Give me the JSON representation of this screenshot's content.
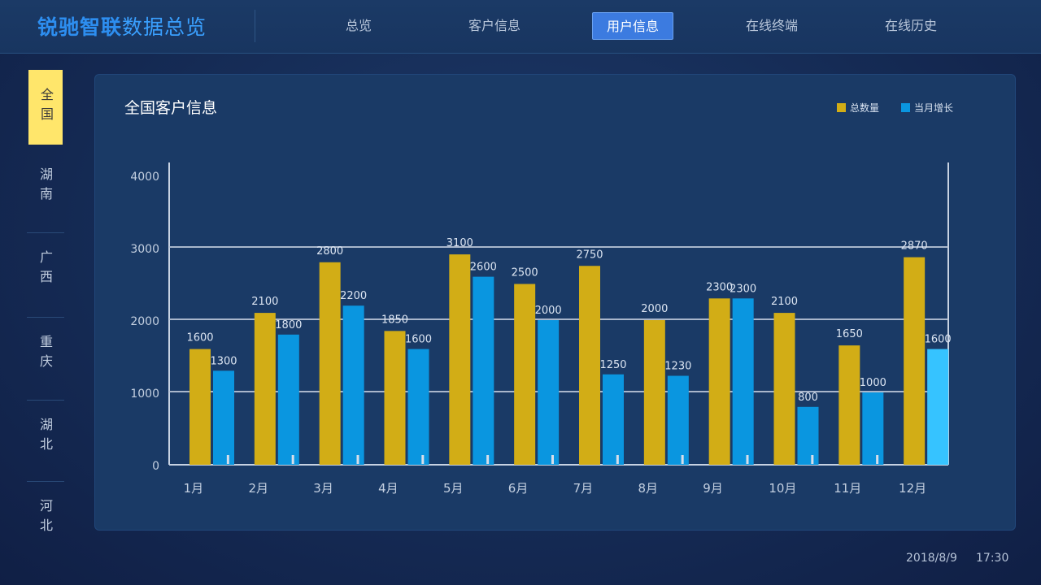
{
  "header": {
    "brand_bold": "锐驰智联",
    "brand_light": "数据总览",
    "tabs": [
      {
        "label": "总览",
        "active": false
      },
      {
        "label": "客户信息",
        "active": false
      },
      {
        "label": "用户信息",
        "active": true
      },
      {
        "label": "在线终端",
        "active": false
      },
      {
        "label": "在线历史",
        "active": false
      }
    ]
  },
  "sidebar": {
    "items": [
      {
        "label": "全国",
        "active": true
      },
      {
        "label": "湖南",
        "active": false
      },
      {
        "label": "广西",
        "active": false
      },
      {
        "label": "重庆",
        "active": false
      },
      {
        "label": "湖北",
        "active": false
      },
      {
        "label": "河北",
        "active": false
      }
    ]
  },
  "panel": {
    "title": "全国客户信息"
  },
  "colors": {
    "total": "#d2ad16",
    "growth": "#0a96e0",
    "growth_highlight": "#36c3ff",
    "active_tab": "#3c7be0",
    "active_side": "#ffe66b"
  },
  "chart_data": {
    "type": "bar",
    "title": "全国客户信息",
    "categories": [
      "1月",
      "2月",
      "3月",
      "4月",
      "5月",
      "6月",
      "7月",
      "8月",
      "9月",
      "10月",
      "11月",
      "12月"
    ],
    "series": [
      {
        "name": "总数量",
        "values": [
          1600,
          2100,
          2800,
          1850,
          3100,
          2500,
          2750,
          2000,
          2300,
          2100,
          1650,
          2870
        ]
      },
      {
        "name": "当月增长",
        "values": [
          1300,
          1800,
          2200,
          1600,
          2600,
          2000,
          1250,
          1230,
          2300,
          800,
          1000,
          1600
        ]
      }
    ],
    "yticks": [
      "0",
      "1000",
      "2000",
      "3000",
      "4000"
    ],
    "ylim": [
      0,
      4000
    ],
    "legend_position": "top-right",
    "grid": true
  },
  "footer": {
    "date": "2018/8/9",
    "time": "17:30"
  }
}
